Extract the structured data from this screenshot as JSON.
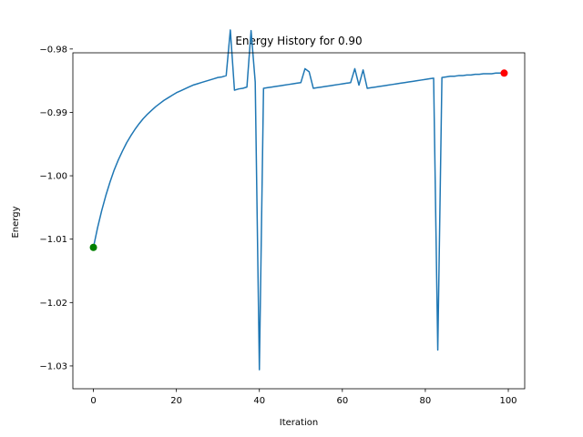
{
  "chart_data": {
    "type": "line",
    "title": "Energy History for 0.90",
    "xlabel": "Iteration",
    "ylabel": "Energy",
    "xlim": [
      -4.95,
      103.95
    ],
    "ylim": [
      -1.0336,
      -0.9806
    ],
    "x_ticks": [
      0,
      20,
      40,
      60,
      80,
      100
    ],
    "y_ticks": [
      -1.03,
      -1.02,
      -1.01,
      -1.0,
      -0.99,
      -0.98
    ],
    "x_tick_labels": [
      "0",
      "20",
      "40",
      "60",
      "80",
      "100"
    ],
    "y_tick_labels": [
      "−1.03",
      "−1.02",
      "−1.01",
      "−1.00",
      "−0.99",
      "−0.98"
    ],
    "grid": false,
    "line_color": "#1f77b4",
    "series": [
      {
        "values": [
          -1.0113,
          -1.0082,
          -1.0055,
          -1.0031,
          -1.001,
          -0.9991,
          -0.9975,
          -0.9961,
          -0.9948,
          -0.9937,
          -0.9927,
          -0.9918,
          -0.991,
          -0.9903,
          -0.9897,
          -0.9891,
          -0.9886,
          -0.9881,
          -0.9877,
          -0.9873,
          -0.9869,
          -0.9866,
          -0.9863,
          -0.986,
          -0.9857,
          -0.9855,
          -0.9853,
          -0.9851,
          -0.9849,
          -0.9847,
          -0.9845,
          -0.9844,
          -0.9842,
          -0.977,
          -0.9865,
          -0.9863,
          -0.9862,
          -0.986,
          -0.9771,
          -0.9852,
          -1.0306,
          -0.9862,
          -0.9861,
          -0.986,
          -0.9859,
          -0.9858,
          -0.9857,
          -0.9856,
          -0.9855,
          -0.9854,
          -0.9853,
          -0.9831,
          -0.9836,
          -0.9862,
          -0.9861,
          -0.986,
          -0.9859,
          -0.9858,
          -0.9857,
          -0.9856,
          -0.9855,
          -0.9854,
          -0.9853,
          -0.9831,
          -0.9857,
          -0.9833,
          -0.9862,
          -0.9861,
          -0.986,
          -0.9859,
          -0.9858,
          -0.9857,
          -0.9856,
          -0.9855,
          -0.9854,
          -0.9853,
          -0.9852,
          -0.9851,
          -0.985,
          -0.9849,
          -0.9848,
          -0.9847,
          -0.9846,
          -1.0275,
          -0.9845,
          -0.9844,
          -0.9843,
          -0.9843,
          -0.9842,
          -0.9842,
          -0.9841,
          -0.9841,
          -0.984,
          -0.984,
          -0.9839,
          -0.9839,
          -0.9839,
          -0.9838,
          -0.9838,
          -0.9838
        ]
      }
    ],
    "markers": [
      {
        "name": "start",
        "x": 0,
        "y": -1.0113,
        "color": "#008000"
      },
      {
        "name": "end",
        "x": 99,
        "y": -0.9838,
        "color": "#ff0000"
      }
    ]
  }
}
